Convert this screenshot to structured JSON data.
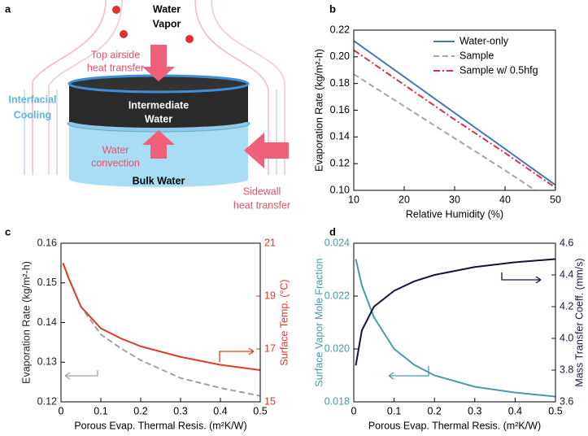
{
  "diagram": {
    "label": "a",
    "vapor": [
      "Water",
      "Vapor"
    ],
    "top": [
      "Top airside",
      "heat transfer"
    ],
    "interfacial": [
      "Interfacial",
      "Cooling"
    ],
    "intermediate": [
      "Intermediate",
      "Water"
    ],
    "convection": [
      "Water",
      "convection"
    ],
    "bulk": "Bulk Water",
    "sidewall": [
      "Sidewall",
      "heat transfer"
    ]
  },
  "chart_data": [
    {
      "type": "line",
      "label": "b",
      "xlabel": "Relative Humidity (%)",
      "ylabel": "Evaporation Rate (kg/m²-h)",
      "xlim": [
        10,
        50
      ],
      "ylim": [
        0.1,
        0.22
      ],
      "xticks": [
        10,
        20,
        30,
        40,
        50
      ],
      "yticks": [
        {
          "value": 0.1,
          "label": "0.10"
        },
        0.12,
        0.14,
        0.16,
        0.18,
        {
          "value": 0.2,
          "label": "0.20"
        },
        0.22
      ],
      "legend": "upper right",
      "series": [
        {
          "name": "Water-only",
          "color": "#4a78a8",
          "linestyle": "solid",
          "x": [
            10,
            20,
            30,
            40,
            50
          ],
          "values": [
            0.212,
            0.185,
            0.158,
            0.131,
            0.104
          ]
        },
        {
          "name": "Sample",
          "color": "#a8a2b0",
          "linestyle": "dashed",
          "x": [
            10,
            20,
            30,
            40,
            46
          ],
          "values": [
            0.187,
            0.163,
            0.139,
            0.115,
            0.1
          ]
        },
        {
          "name": "Sample w/ 0.5hfg",
          "color": "#d8334a",
          "linestyle": "dashdot",
          "x": [
            10,
            20,
            30,
            40,
            50
          ],
          "values": [
            0.205,
            0.179,
            0.153,
            0.128,
            0.102
          ]
        }
      ]
    },
    {
      "type": "line",
      "label": "c",
      "xlabel": "Porous Evap. Thermal Resis. (m²K/W)",
      "ylabel": "Evaporation Rate (kg/m²-h)",
      "y2label": "Surface Temp. (°C)",
      "ycolor": "#222222",
      "y2color": "#e03a2a",
      "xlim": [
        0,
        0.5
      ],
      "ylim": [
        0.12,
        0.16
      ],
      "y2lim": [
        15,
        21
      ],
      "xticks": [
        0,
        0.1,
        0.2,
        0.3,
        0.4,
        0.5
      ],
      "yticks": [
        0.12,
        0.13,
        0.14,
        0.15,
        0.16
      ],
      "y2ticks": [
        15,
        17,
        19,
        21
      ],
      "series": [
        {
          "color": "#a0a0a0",
          "linestyle": "dashed",
          "x": [
            0.005,
            0.02,
            0.05,
            0.1,
            0.15,
            0.2,
            0.3,
            0.4,
            0.5
          ],
          "values": [
            0.155,
            0.151,
            0.144,
            0.137,
            0.1335,
            0.1305,
            0.126,
            0.1235,
            0.1215
          ]
        },
        {
          "color": "#e03a2a",
          "linestyle": "solid",
          "axis": "y2",
          "x": [
            0.005,
            0.02,
            0.05,
            0.1,
            0.15,
            0.2,
            0.3,
            0.4,
            0.5
          ],
          "values": [
            20.25,
            19.65,
            18.6,
            17.78,
            17.4,
            17.1,
            16.7,
            16.4,
            16.2
          ]
        }
      ]
    },
    {
      "type": "line",
      "label": "d",
      "xlabel": "Porous Evap. Thermal Resis. (m²K/W)",
      "ylabel": "Surface Vapor Mole Fraction",
      "y2label": "Mass Transfer Coeff. (mm/s)",
      "ycolor": "#4a9aa8",
      "y2color": "#1a1a40",
      "xlim": [
        0,
        0.5
      ],
      "ylim": [
        0.018,
        0.024
      ],
      "y2lim": [
        3.6,
        4.6
      ],
      "xticks": [
        0,
        0.1,
        0.2,
        0.3,
        0.4,
        0.5
      ],
      "yticks": [
        0.018,
        {
          "value": 0.02,
          "label": "0.020"
        },
        0.022,
        0.024
      ],
      "y2ticks": [
        3.6,
        3.8,
        {
          "value": 4,
          "label": "4.0"
        },
        4.2,
        4.4,
        4.6
      ],
      "series": [
        {
          "color": "#4a9aa8",
          "linestyle": "solid",
          "x": [
            0.005,
            0.02,
            0.05,
            0.1,
            0.15,
            0.2,
            0.3,
            0.4,
            0.5
          ],
          "values": [
            0.0234,
            0.0224,
            0.0212,
            0.02,
            0.0194,
            0.019,
            0.01857,
            0.01835,
            0.0182
          ]
        },
        {
          "color": "#141438",
          "linestyle": "solid",
          "axis": "y2",
          "x": [
            0.005,
            0.02,
            0.05,
            0.1,
            0.15,
            0.2,
            0.3,
            0.4,
            0.5
          ],
          "values": [
            3.83,
            4.05,
            4.2,
            4.3,
            4.36,
            4.4,
            4.45,
            4.48,
            4.5
          ]
        }
      ]
    }
  ]
}
